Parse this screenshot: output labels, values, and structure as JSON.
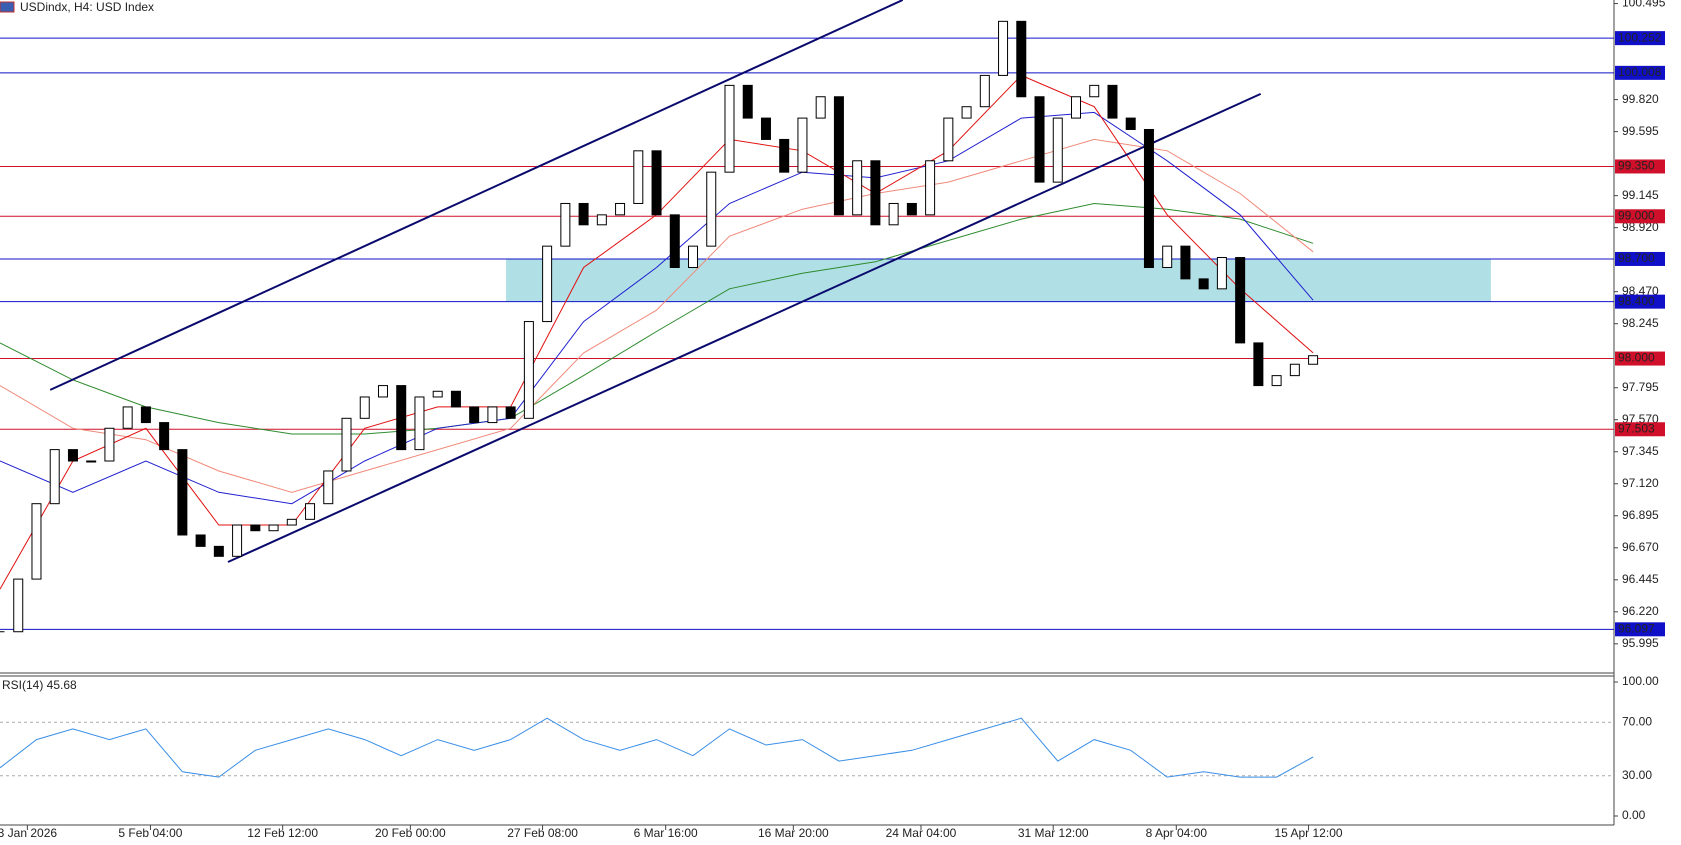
{
  "chart_data": {
    "type": "candlestick",
    "title": "USDindx, H4:  USD Index",
    "xlim": [
      0,
      354
    ],
    "ylim": [
      95.79,
      100.52
    ],
    "yticks": [
      100.495,
      {
        "value": 99.82,
        "label": "99.820"
      },
      99.595,
      99.145,
      {
        "value": 98.92,
        "label": "98.920"
      },
      {
        "value": 98.47,
        "label": "98.470"
      },
      98.245,
      97.795,
      {
        "value": 97.57,
        "label": "97.570"
      },
      97.345,
      {
        "value": 97.12,
        "label": "97.120"
      },
      96.895,
      {
        "value": 96.67,
        "label": "96.670"
      },
      96.445,
      {
        "value": 96.22,
        "label": "96.220"
      },
      95.995
    ],
    "xticks": [
      {
        "value": 6,
        "label": "3 Jan 2026"
      },
      {
        "value": 33,
        "label": "5 Feb 04:00"
      },
      {
        "value": 62,
        "label": "12 Feb 12:00"
      },
      {
        "value": 90,
        "label": "20 Feb 00:00"
      },
      {
        "value": 119,
        "label": "27 Feb 08:00"
      },
      {
        "value": 146,
        "label": "6 Mar 16:00"
      },
      {
        "value": 174,
        "label": "16 Mar 20:00"
      },
      {
        "value": 202,
        "label": "24 Mar 04:00"
      },
      {
        "value": 231,
        "label": "31 Mar 12:00"
      },
      {
        "value": 258,
        "label": "8 Apr 04:00"
      },
      {
        "value": 287,
        "label": "15 Apr 12:00"
      }
    ],
    "x": [
      0,
      4,
      8,
      12,
      16,
      20,
      24,
      28,
      32,
      36,
      40,
      44,
      48,
      52,
      56,
      60,
      64,
      68,
      72,
      76,
      80,
      84,
      88,
      92,
      96,
      100,
      104,
      108,
      112,
      116,
      120,
      124,
      128,
      132,
      136,
      140,
      144,
      148,
      152,
      156,
      160,
      164,
      168,
      172,
      176,
      180,
      184,
      188,
      192,
      196,
      200,
      204,
      208,
      212,
      216,
      220,
      224,
      228,
      232,
      236,
      240,
      244,
      248,
      252,
      256,
      260,
      264,
      268,
      272,
      276,
      280,
      284,
      288
    ],
    "values": [
      96.08,
      96.45,
      96.98,
      97.36,
      97.28,
      97.28,
      97.51,
      97.66,
      97.55,
      97.36,
      96.76,
      96.68,
      96.61,
      96.83,
      96.79,
      96.83,
      96.87,
      96.98,
      97.21,
      97.58,
      97.73,
      97.81,
      97.36,
      97.73,
      97.77,
      97.66,
      97.55,
      97.66,
      97.58,
      98.26,
      98.79,
      99.09,
      98.94,
      99.01,
      99.09,
      99.46,
      99.01,
      98.64,
      98.79,
      99.31,
      99.92,
      99.69,
      99.54,
      99.31,
      99.69,
      99.84,
      99.01,
      99.39,
      98.94,
      99.09,
      99.01,
      99.39,
      99.69,
      99.77,
      99.99,
      100.37,
      99.84,
      99.24,
      99.69,
      99.84,
      99.92,
      99.69,
      99.61,
      98.64,
      98.79,
      98.56,
      98.49,
      98.71,
      98.11,
      97.81,
      97.88,
      97.96,
      98.02
    ],
    "ma_x": [
      0,
      16,
      32,
      48,
      64,
      80,
      96,
      112,
      128,
      144,
      160,
      176,
      192,
      208,
      224,
      240,
      256,
      272,
      288
    ],
    "moving_averages": [
      {
        "color": "#2e8b2e",
        "values": [
          98.11,
          97.85,
          97.66,
          97.55,
          97.47,
          97.47,
          97.51,
          97.58,
          97.88,
          98.19,
          98.49,
          98.6,
          98.68,
          98.83,
          98.98,
          99.09,
          99.05,
          98.98,
          98.81
        ]
      },
      {
        "color": "#f08a7a",
        "values": [
          97.81,
          97.51,
          97.43,
          97.21,
          97.06,
          97.21,
          97.36,
          97.51,
          98.04,
          98.34,
          98.86,
          99.05,
          99.16,
          99.24,
          99.39,
          99.54,
          99.46,
          99.16,
          98.75
        ]
      },
      {
        "color": "#2020d0",
        "values": [
          97.28,
          97.06,
          97.28,
          97.06,
          96.98,
          97.28,
          97.51,
          97.58,
          98.26,
          98.64,
          99.09,
          99.31,
          99.27,
          99.39,
          99.69,
          99.73,
          99.39,
          99.01,
          98.41
        ]
      },
      {
        "color": "#e01010",
        "values": [
          96.38,
          97.28,
          97.51,
          96.83,
          96.83,
          97.51,
          97.66,
          97.66,
          98.64,
          99.01,
          99.54,
          99.46,
          99.16,
          99.46,
          99.99,
          99.77,
          99.01,
          98.49,
          98.04
        ]
      }
    ],
    "zone": {
      "x": [
        111,
        327
      ],
      "values": [
        98.4,
        98.7
      ],
      "color": "#b0dfe5"
    },
    "trendlines": [
      {
        "color": "#0a0a6e",
        "x": [
          11,
          198
        ],
        "values": [
          97.78,
          100.52
        ]
      },
      {
        "color": "#0a0a6e",
        "x": [
          50,
          276.5
        ],
        "values": [
          96.57,
          99.86
        ]
      }
    ],
    "levels": [
      {
        "value": 100.252,
        "label": "100.252",
        "color": "#1010c8"
      },
      {
        "value": 100.008,
        "label": "100.008",
        "color": "#1010c8"
      },
      {
        "value": 99.35,
        "label": "99.350",
        "color": "#d0102a"
      },
      {
        "value": 99.0,
        "label": "99.000",
        "color": "#d0102a"
      },
      {
        "value": 98.7,
        "label": "98.700",
        "color": "#1010c8"
      },
      {
        "value": 98.4,
        "label": "98.400",
        "color": "#1010c8"
      },
      {
        "value": 98.0,
        "label": "98.000",
        "color": "#d0102a"
      },
      {
        "value": 97.503,
        "label": "97.503",
        "color": "#d0102a"
      },
      {
        "value": 96.097,
        "label": "96.097",
        "color": "#1010c8"
      }
    ],
    "rsi": {
      "label": "RSI(14) 45.68",
      "color": "#3a8ee6",
      "ylim": [
        0,
        100
      ],
      "yticks": [
        {
          "value": 100,
          "label": "100.00"
        },
        {
          "value": 70,
          "label": "70.00"
        },
        {
          "value": 30,
          "label": "30.00"
        },
        {
          "value": 0,
          "label": "0.00"
        }
      ],
      "x": [
        0,
        8,
        16,
        24,
        32,
        40,
        48,
        56,
        64,
        72,
        80,
        88,
        96,
        104,
        112,
        120,
        128,
        136,
        144,
        152,
        160,
        168,
        176,
        184,
        192,
        200,
        208,
        216,
        224,
        232,
        240,
        248,
        256,
        264,
        272,
        280,
        288
      ],
      "values": [
        36,
        57,
        65,
        57,
        65,
        33,
        29,
        49,
        57,
        65,
        57,
        45,
        57,
        49,
        57,
        73,
        57,
        49,
        57,
        45,
        65,
        53,
        57,
        41,
        45,
        49,
        57,
        65,
        73,
        41,
        57,
        49,
        29,
        33,
        29,
        29,
        44
      ]
    }
  }
}
